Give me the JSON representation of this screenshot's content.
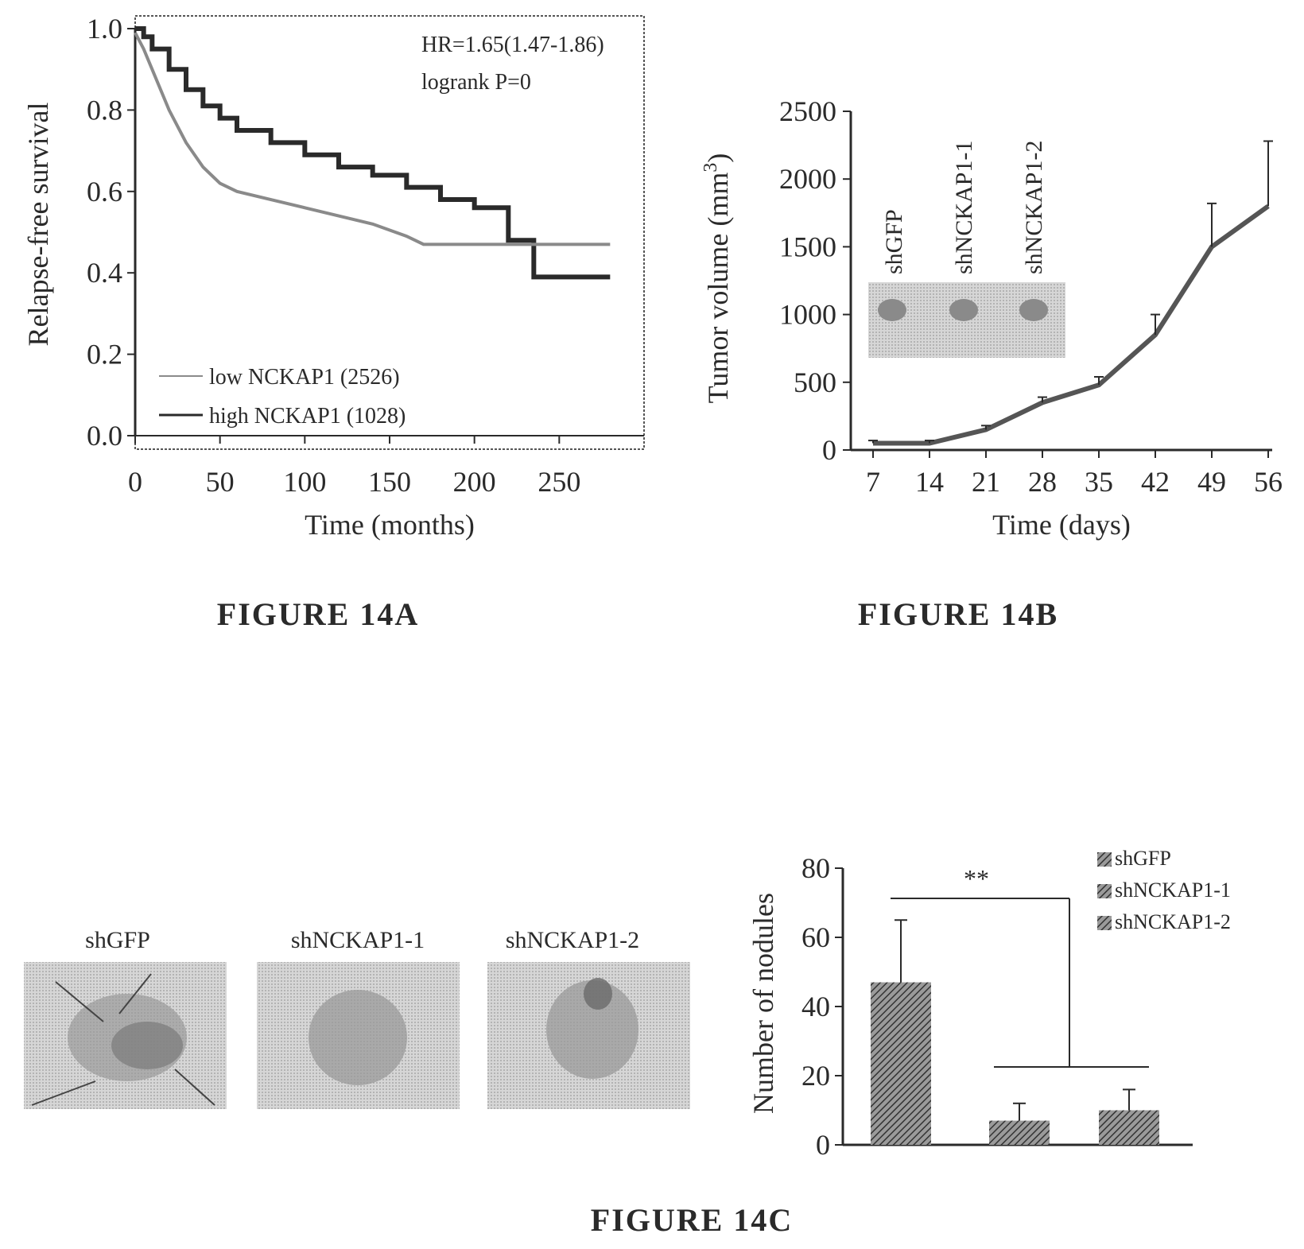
{
  "colors": {
    "ink": "#2a2a2a",
    "low_series": "#8a8a8a",
    "high_series": "#2a2a2a",
    "panel_bg": "#cfcfcf",
    "bar": "#555555"
  },
  "chart_data": [
    {
      "panel": "A",
      "type": "line",
      "caption": "FIGURE 14A",
      "xlabel": "Time (months)",
      "ylabel": "Relapse-free survival",
      "xlim": [
        0,
        300
      ],
      "ylim": [
        0,
        1.0
      ],
      "xticks": [
        "0",
        "50",
        "100",
        "150",
        "200",
        "250"
      ],
      "yticks": [
        "0.0",
        "0.2",
        "0.4",
        "0.6",
        "0.8",
        "1.0"
      ],
      "annotations": [
        "HR=1.65(1.47-1.86)",
        "logrank P=0"
      ],
      "legend": [
        "low NCKAP1 (2526)",
        "high NCKAP1 (1028)"
      ],
      "legend_position": "bottom-left",
      "series": [
        {
          "name": "low NCKAP1 (2526)",
          "step": true,
          "x": [
            0,
            5,
            10,
            20,
            30,
            40,
            50,
            60,
            80,
            100,
            120,
            140,
            160,
            180,
            200,
            215,
            220,
            235,
            280
          ],
          "y": [
            1.0,
            0.98,
            0.95,
            0.9,
            0.85,
            0.81,
            0.78,
            0.75,
            0.72,
            0.69,
            0.66,
            0.64,
            0.61,
            0.58,
            0.56,
            0.56,
            0.48,
            0.39,
            0.39
          ]
        },
        {
          "name": "high NCKAP1 (1028)",
          "step": false,
          "x": [
            0,
            5,
            10,
            20,
            30,
            40,
            50,
            60,
            80,
            100,
            120,
            140,
            160,
            170,
            200,
            230,
            280
          ],
          "y": [
            0.99,
            0.95,
            0.9,
            0.8,
            0.72,
            0.66,
            0.62,
            0.6,
            0.58,
            0.56,
            0.54,
            0.52,
            0.49,
            0.47,
            0.47,
            0.47,
            0.47
          ]
        }
      ]
    },
    {
      "panel": "B",
      "type": "line",
      "caption": "FIGURE 14B",
      "xlabel": "Time (days)",
      "ylabel": "Tumor volume (mm",
      "ylabel_superscript": "3",
      "ylabel_close": ")",
      "ylim": [
        0,
        2500
      ],
      "yticks": [
        "0",
        "500",
        "1000",
        "1500",
        "2000",
        "2500"
      ],
      "categories": [
        "7",
        "14",
        "21",
        "28",
        "35",
        "42",
        "49",
        "56"
      ],
      "blot_labels": [
        "shGFP",
        "shNCKAP1-1",
        "shNCKAP1-2"
      ],
      "series": [
        {
          "values": [
            50,
            50,
            150,
            350,
            480,
            850,
            1500,
            1800
          ],
          "errors": [
            20,
            20,
            30,
            40,
            60,
            150,
            320,
            480
          ]
        }
      ]
    },
    {
      "panel": "C",
      "type": "bar",
      "caption": "FIGURE 14C",
      "image_labels": [
        "shGFP",
        "shNCKAP1-1",
        "shNCKAP1-2"
      ],
      "ylabel": "Number of nodules",
      "ylim": [
        0,
        80
      ],
      "yticks": [
        "0",
        "20",
        "40",
        "60",
        "80"
      ],
      "categories": [
        "shGFP",
        "shNCKAP1-1",
        "shNCKAP1-2"
      ],
      "values": [
        47,
        7,
        10
      ],
      "errors": [
        18,
        5,
        6
      ],
      "legend": [
        "shGFP",
        "shNCKAP1-1",
        "shNCKAP1-2"
      ],
      "legend_position": "top-right",
      "significance": "**"
    }
  ]
}
